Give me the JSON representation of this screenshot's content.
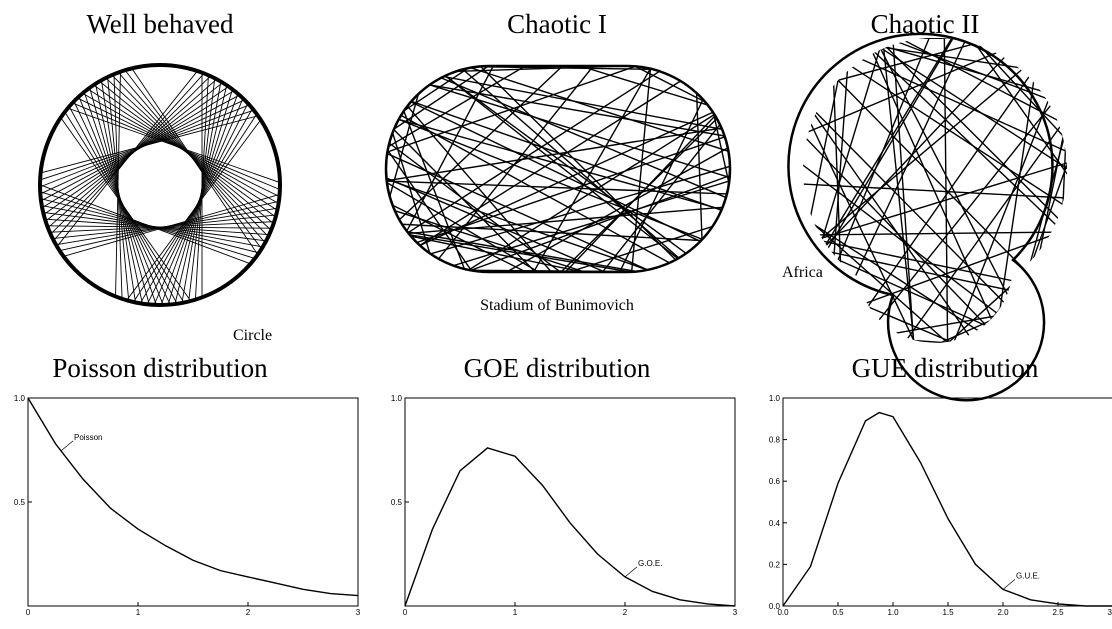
{
  "billiards": [
    {
      "title": "Well behaved",
      "label": "Circle"
    },
    {
      "title": "Chaotic I",
      "label": "Stadium of Bunimovich"
    },
    {
      "title": "Chaotic II",
      "label": "Africa"
    }
  ],
  "chart_data": [
    {
      "type": "line",
      "title": "Poisson distribution",
      "x": [
        0,
        0.25,
        0.5,
        0.75,
        1,
        1.25,
        1.5,
        1.75,
        2,
        2.25,
        2.5,
        2.75,
        3
      ],
      "series": [
        {
          "name": "Poisson",
          "color": "#000000",
          "values": [
            1,
            0.78,
            0.61,
            0.47,
            0.37,
            0.29,
            0.22,
            0.17,
            0.14,
            0.11,
            0.08,
            0.06,
            0.05
          ]
        }
      ],
      "xlim": [
        0,
        3
      ],
      "ylim": [
        0,
        1
      ],
      "xticks": [
        0,
        1,
        2,
        3
      ],
      "yticks": [
        0.5,
        {
          "value": 1,
          "label": "1.0"
        }
      ]
    },
    {
      "type": "line",
      "title": "GOE distribution",
      "x": [
        0,
        0.25,
        0.5,
        0.75,
        1,
        1.25,
        1.5,
        1.75,
        2,
        2.25,
        2.5,
        2.75,
        3
      ],
      "series": [
        {
          "name": "G.O.E.",
          "color": "#000000",
          "values": [
            0,
            0.37,
            0.65,
            0.76,
            0.72,
            0.58,
            0.4,
            0.25,
            0.14,
            0.07,
            0.03,
            0.01,
            0
          ]
        }
      ],
      "xlim": [
        0,
        3
      ],
      "ylim": [
        0,
        1
      ],
      "xticks": [
        0,
        1,
        2,
        3
      ],
      "yticks": [
        0.5,
        {
          "value": 1,
          "label": "1.0"
        }
      ]
    },
    {
      "type": "line",
      "title": "GUE distribution",
      "x": [
        0,
        0.25,
        0.5,
        0.75,
        0.875,
        1,
        1.25,
        1.5,
        1.75,
        2,
        2.25,
        2.5,
        2.75,
        3
      ],
      "series": [
        {
          "name": "G.U.E.",
          "color": "#000000",
          "values": [
            0,
            0.19,
            0.59,
            0.89,
            0.93,
            0.91,
            0.69,
            0.42,
            0.2,
            0.08,
            0.03,
            0.01,
            0,
            0
          ]
        }
      ],
      "xlim": [
        0,
        3
      ],
      "ylim": [
        0,
        1
      ],
      "xticks": [
        {
          "value": 0,
          "label": "0.0"
        },
        0.5,
        {
          "value": 1,
          "label": "1.0"
        },
        1.5,
        {
          "value": 2,
          "label": "2.0"
        },
        2.5,
        {
          "value": 3,
          "label": "3.0"
        }
      ],
      "yticks": [
        {
          "value": 0,
          "label": "0.0"
        },
        0.2,
        0.4,
        0.6,
        0.8,
        {
          "value": 1,
          "label": "1.0"
        }
      ]
    }
  ]
}
